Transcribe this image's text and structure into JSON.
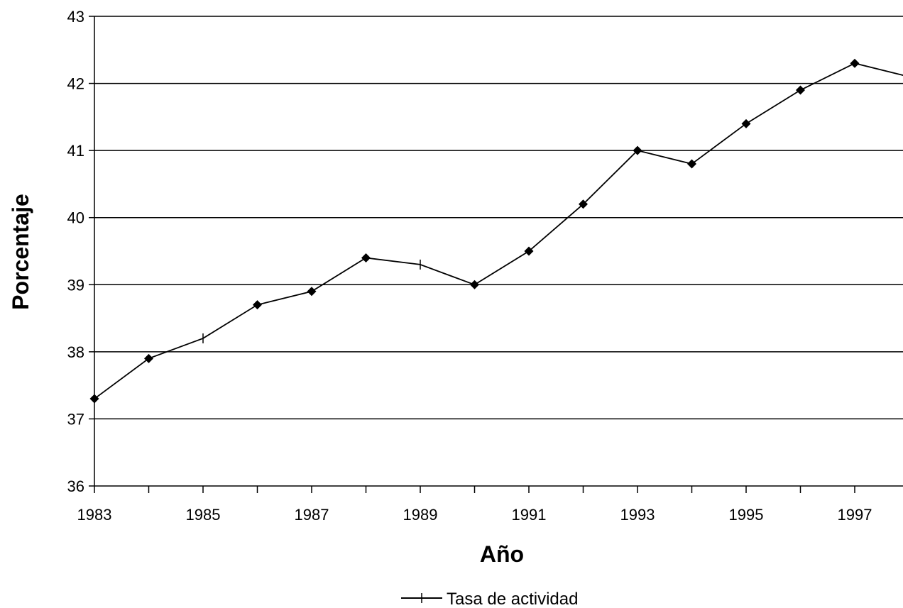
{
  "chart_data": {
    "type": "line",
    "title": "",
    "xlabel": "Año",
    "ylabel": "Porcentaje",
    "ylim": [
      36,
      43
    ],
    "yticks": [
      "36",
      "37",
      "38",
      "39",
      "40",
      "41",
      "42",
      "43"
    ],
    "xticks": [
      "1983",
      "1985",
      "1987",
      "1989",
      "1991",
      "1993",
      "1995",
      "1997"
    ],
    "grid": "horizontal",
    "legend_position": "bottom-center",
    "series": [
      {
        "name": "Tasa de actividad",
        "x": [
          1983,
          1984,
          1985,
          1986,
          1987,
          1988,
          1989,
          1990,
          1991,
          1992,
          1993,
          1994,
          1995,
          1996,
          1997,
          1998
        ],
        "values": [
          37.3,
          37.9,
          38.2,
          38.7,
          38.9,
          39.4,
          39.3,
          39.0,
          39.5,
          40.2,
          41.0,
          40.8,
          41.4,
          41.9,
          42.3,
          42.1
        ],
        "markers": [
          "diamond",
          "diamond",
          "tick",
          "diamond",
          "diamond",
          "diamond",
          "tick",
          "diamond",
          "diamond",
          "diamond",
          "diamond",
          "diamond",
          "diamond",
          "diamond",
          "diamond",
          "none"
        ]
      }
    ],
    "colors": {
      "line": "#000000",
      "grid": "#000000",
      "marker": "#000000"
    }
  }
}
